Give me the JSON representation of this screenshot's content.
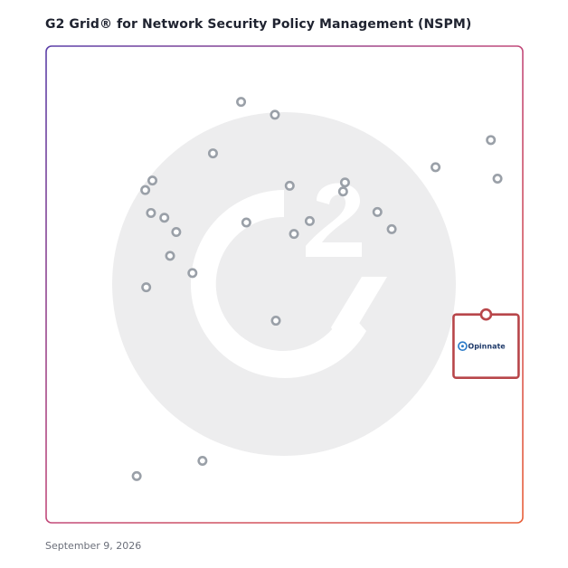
{
  "header": {
    "title": "G2 Grid® for Network Security Policy Management (NSPM)"
  },
  "footer": {
    "date": "September 9, 2026"
  },
  "colors": {
    "border_gradient": [
      "#7a3fb0",
      "#e8603a",
      "#2e9ad8",
      "#8a3fb0"
    ],
    "divider_vertical": "#9a6fc0",
    "divider_horizontal_left": "#3a6ac8",
    "divider_horizontal_right": "#c84a5a",
    "watermark": "#ededee",
    "dot_stroke": "#9aa0a8",
    "highlight": "#b8464a",
    "logo_text": "#1f3a6a"
  },
  "chart_data": {
    "type": "scatter",
    "title": "G2 Grid® for Network Security Policy Management (NSPM)",
    "xlabel": "",
    "ylabel": "",
    "xlim": [
      0,
      100
    ],
    "ylim": [
      0,
      100
    ],
    "quadrant_dividers": {
      "x": 50,
      "y": 50
    },
    "grid": false,
    "watermark_icon": "g2-logo",
    "points": [
      {
        "x": 40.9,
        "y": 88.3
      },
      {
        "x": 48.0,
        "y": 85.6
      },
      {
        "x": 93.3,
        "y": 80.3
      },
      {
        "x": 35.0,
        "y": 77.5
      },
      {
        "x": 81.7,
        "y": 74.6
      },
      {
        "x": 94.7,
        "y": 72.2
      },
      {
        "x": 22.3,
        "y": 71.8
      },
      {
        "x": 51.1,
        "y": 70.7
      },
      {
        "x": 62.7,
        "y": 71.4
      },
      {
        "x": 20.8,
        "y": 69.8
      },
      {
        "x": 62.3,
        "y": 69.5
      },
      {
        "x": 69.5,
        "y": 65.2
      },
      {
        "x": 22.0,
        "y": 65.0
      },
      {
        "x": 24.8,
        "y": 64.0
      },
      {
        "x": 42.0,
        "y": 63.0
      },
      {
        "x": 55.3,
        "y": 63.3
      },
      {
        "x": 27.3,
        "y": 61.0
      },
      {
        "x": 72.5,
        "y": 61.6
      },
      {
        "x": 52.0,
        "y": 60.6
      },
      {
        "x": 26.0,
        "y": 56.0
      },
      {
        "x": 30.7,
        "y": 52.4
      },
      {
        "x": 21.0,
        "y": 49.4
      },
      {
        "x": 48.2,
        "y": 42.4
      },
      {
        "x": 32.8,
        "y": 13.0
      },
      {
        "x": 19.0,
        "y": 9.8
      }
    ],
    "highlighted": {
      "name": "Opinnate",
      "x": 92.3,
      "y": 43.7
    }
  }
}
